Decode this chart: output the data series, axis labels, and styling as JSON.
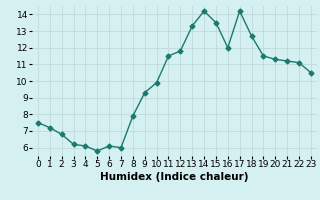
{
  "x": [
    0,
    1,
    2,
    3,
    4,
    5,
    6,
    7,
    8,
    9,
    10,
    11,
    12,
    13,
    14,
    15,
    16,
    17,
    18,
    19,
    20,
    21,
    22,
    23
  ],
  "y": [
    7.5,
    7.2,
    6.8,
    6.2,
    6.1,
    5.8,
    6.1,
    6.0,
    7.9,
    9.3,
    9.9,
    11.5,
    11.8,
    13.3,
    14.2,
    13.5,
    12.0,
    14.2,
    12.7,
    11.5,
    11.3,
    11.2,
    11.1,
    10.5
  ],
  "line_color": "#1a7a6e",
  "marker": "D",
  "marker_size": 2.5,
  "bg_color": "#d4f0f0",
  "grid_color": "#c0dada",
  "xlabel": "Humidex (Indice chaleur)",
  "xlim": [
    -0.5,
    23.5
  ],
  "ylim": [
    5.5,
    14.5
  ],
  "yticks": [
    6,
    7,
    8,
    9,
    10,
    11,
    12,
    13,
    14
  ],
  "xticks": [
    0,
    1,
    2,
    3,
    4,
    5,
    6,
    7,
    8,
    9,
    10,
    11,
    12,
    13,
    14,
    15,
    16,
    17,
    18,
    19,
    20,
    21,
    22,
    23
  ],
  "xtick_labels": [
    "0",
    "1",
    "2",
    "3",
    "4",
    "5",
    "6",
    "7",
    "8",
    "9",
    "10",
    "11",
    "12",
    "13",
    "14",
    "15",
    "16",
    "17",
    "18",
    "19",
    "20",
    "21",
    "22",
    "23"
  ],
  "font_size": 6.5,
  "xlabel_font_size": 7.5
}
